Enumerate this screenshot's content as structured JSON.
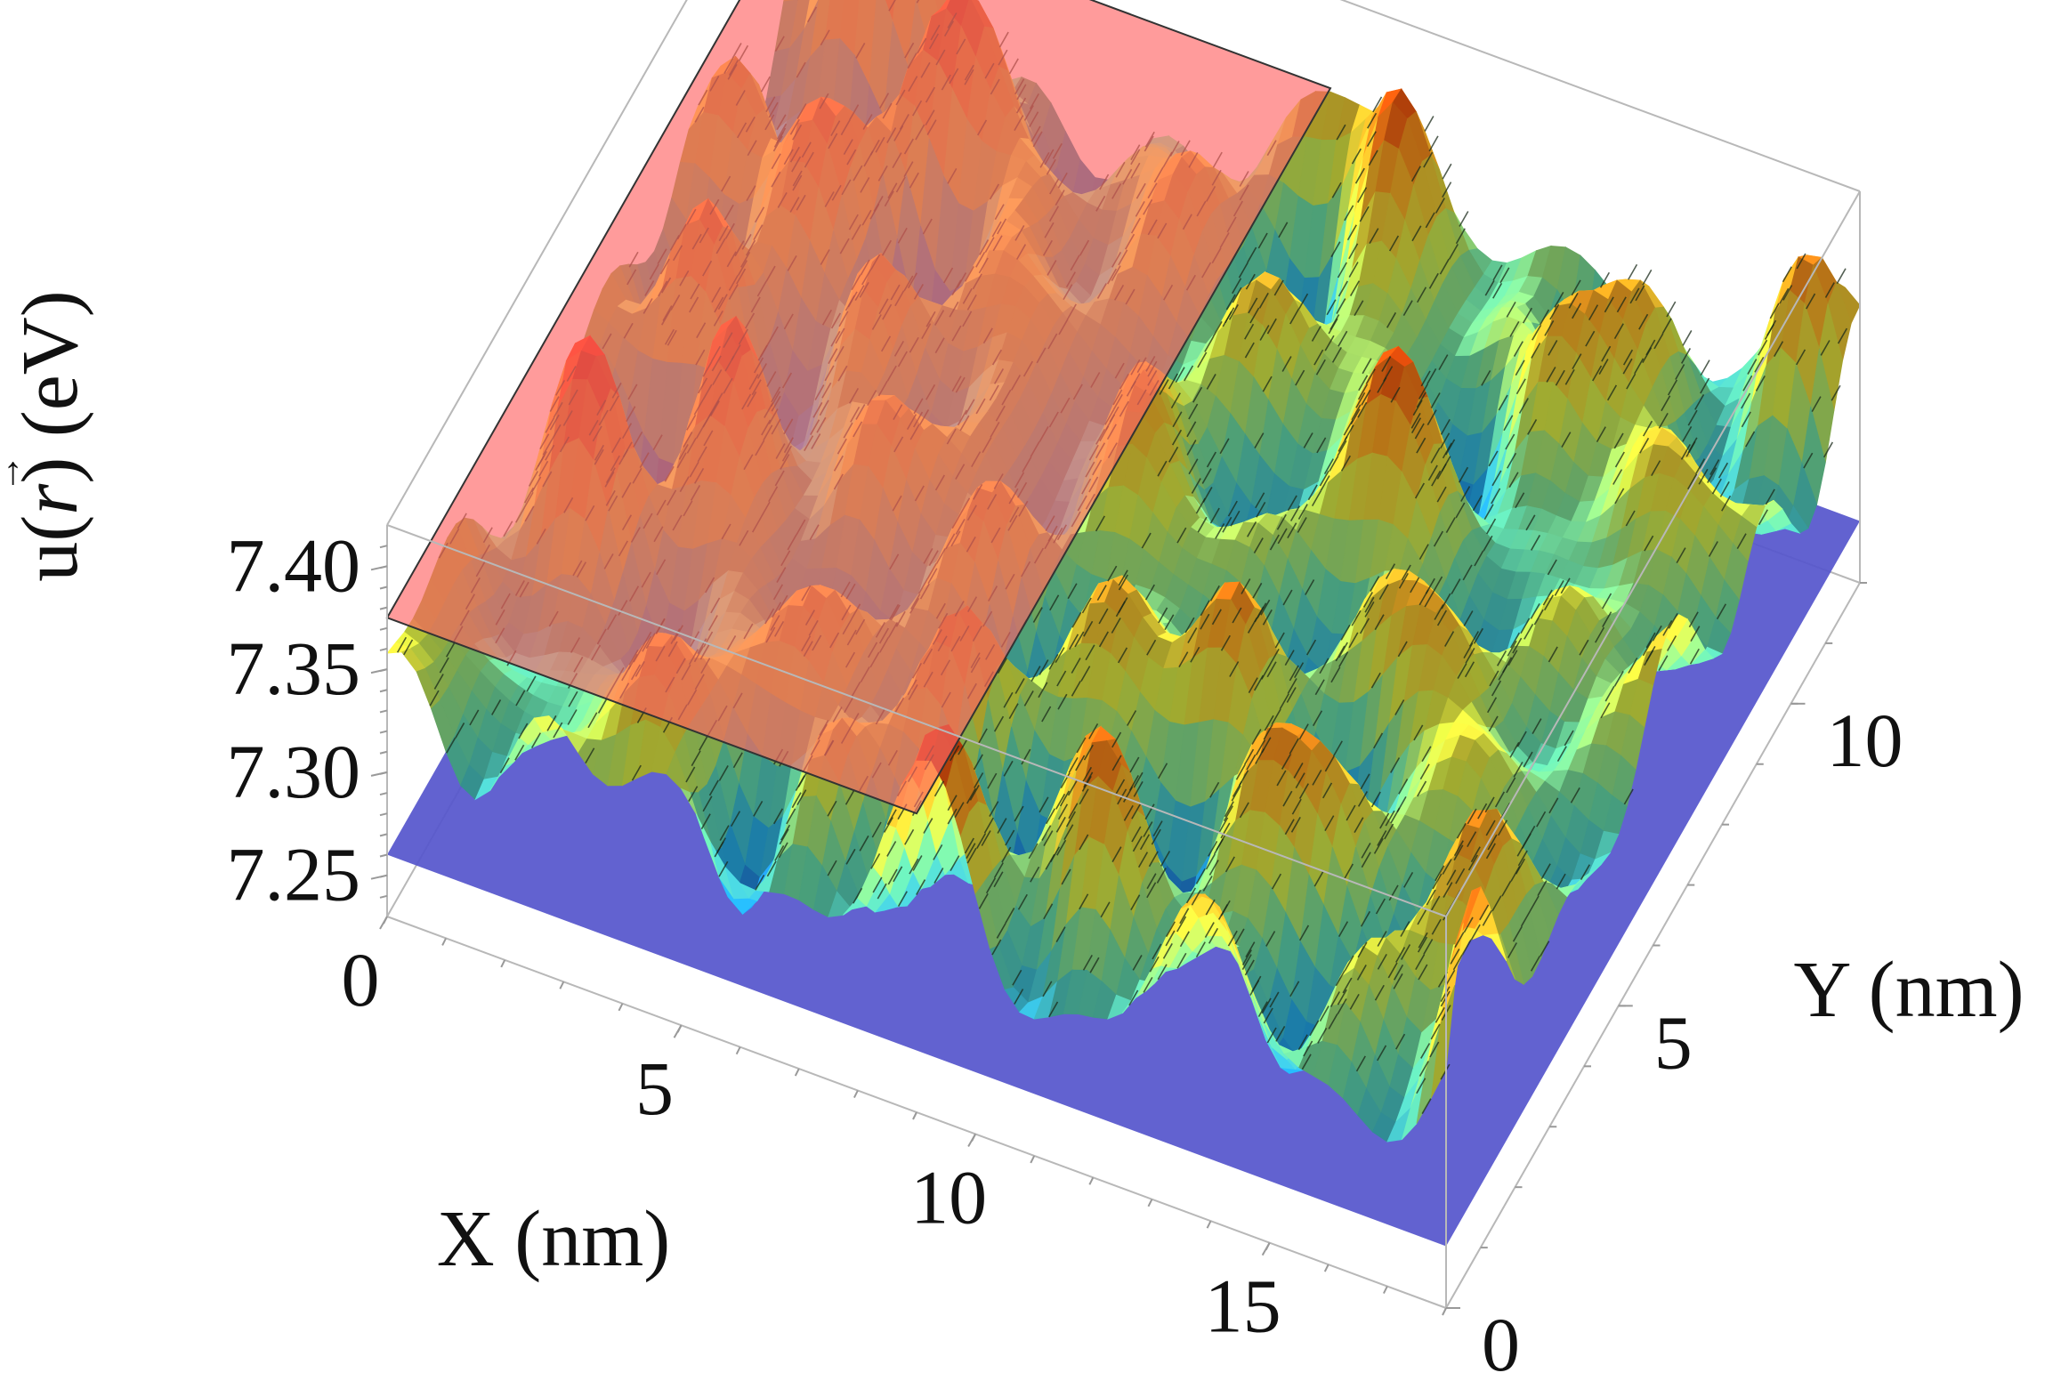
{
  "chart_data": {
    "type": "surface3d",
    "title": "",
    "xlabel": "X (nm)",
    "ylabel": "Y (nm)",
    "zlabel": "u(r⃗) (eV)",
    "zlabel_parts": {
      "prefix": "u(",
      "symbol": "r",
      "arrow": "→",
      "suffix": ") (eV)"
    },
    "xlim": [
      0,
      18
    ],
    "ylim": [
      0,
      12
    ],
    "zlim": [
      7.23,
      7.42
    ],
    "x_ticks": [
      {
        "value": 0,
        "label": "0"
      },
      {
        "value": 5,
        "label": "5"
      },
      {
        "value": 10,
        "label": "10"
      },
      {
        "value": 15,
        "label": "15"
      }
    ],
    "y_ticks": [
      {
        "value": 0,
        "label": "0"
      },
      {
        "value": 5,
        "label": "5"
      },
      {
        "value": 10,
        "label": "10"
      }
    ],
    "z_ticks": [
      {
        "value": 7.25,
        "label": "7.25"
      },
      {
        "value": 7.3,
        "label": "7.30"
      },
      {
        "value": 7.35,
        "label": "7.35"
      },
      {
        "value": 7.4,
        "label": "7.40"
      }
    ],
    "planes": [
      {
        "name": "upper",
        "z": 7.375,
        "x_range": [
          0,
          9
        ],
        "y_range": [
          0,
          12
        ],
        "color": "#ff6666",
        "opacity": 0.65
      },
      {
        "name": "lower",
        "z": 7.26,
        "x_range": [
          0,
          18
        ],
        "y_range": [
          0,
          12
        ],
        "color": "#5555cc",
        "opacity": 0.92
      }
    ],
    "surface": {
      "colormap": [
        "#2233bb",
        "#22aaee",
        "#66ddaa",
        "#ddee44",
        "#ffaa22",
        "#ee2200"
      ],
      "z_mean": 7.335,
      "z_min_approx": 7.255,
      "z_max_approx": 7.415,
      "contours": true
    },
    "grid": false,
    "legend": "none"
  }
}
